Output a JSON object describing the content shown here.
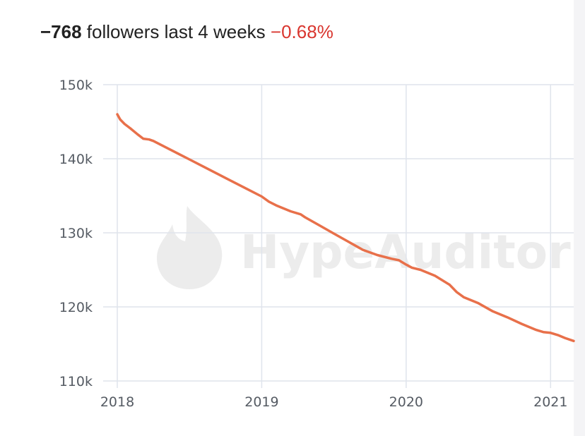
{
  "header": {
    "count": "−768",
    "text": " followers last 4 weeks ",
    "pct": "−0.68%"
  },
  "watermark": {
    "brand": "HypeAuditor"
  },
  "colors": {
    "line": "#e8704a",
    "negative": "#d9362f",
    "grid": "#dfe4ec"
  },
  "chart_data": {
    "type": "line",
    "title": "",
    "xlabel": "",
    "ylabel": "",
    "x_ticks": [
      "2018",
      "2019",
      "2020",
      "2021"
    ],
    "y_ticks": [
      "110k",
      "120k",
      "130k",
      "140k",
      "150k"
    ],
    "xlim": [
      2018.0,
      2021.16
    ],
    "ylim": [
      110000,
      150000
    ],
    "grid": true,
    "legend": "none",
    "series": [
      {
        "name": "",
        "x": [
          2018.0,
          2018.02,
          2018.05,
          2018.09,
          2018.14,
          2018.18,
          2018.22,
          2018.25,
          2018.3,
          2018.4,
          2018.5,
          2018.6,
          2018.7,
          2018.8,
          2018.9,
          2019.0,
          2019.05,
          2019.1,
          2019.2,
          2019.27,
          2019.3,
          2019.4,
          2019.5,
          2019.6,
          2019.7,
          2019.8,
          2019.9,
          2019.95,
          2020.0,
          2020.04,
          2020.1,
          2020.2,
          2020.3,
          2020.35,
          2020.4,
          2020.5,
          2020.6,
          2020.7,
          2020.8,
          2020.9,
          2020.95,
          2021.0,
          2021.05,
          2021.1,
          2021.16
        ],
        "y": [
          146000,
          145300,
          144700,
          144100,
          143300,
          142700,
          142600,
          142400,
          141900,
          140900,
          139900,
          138900,
          137900,
          136900,
          135900,
          134900,
          134200,
          133700,
          132900,
          132500,
          132100,
          131000,
          129900,
          128800,
          127700,
          127000,
          126500,
          126300,
          125700,
          125300,
          125000,
          124200,
          123000,
          122000,
          121300,
          120500,
          119400,
          118600,
          117700,
          116900,
          116600,
          116500,
          116200,
          115800,
          115400
        ]
      }
    ]
  }
}
